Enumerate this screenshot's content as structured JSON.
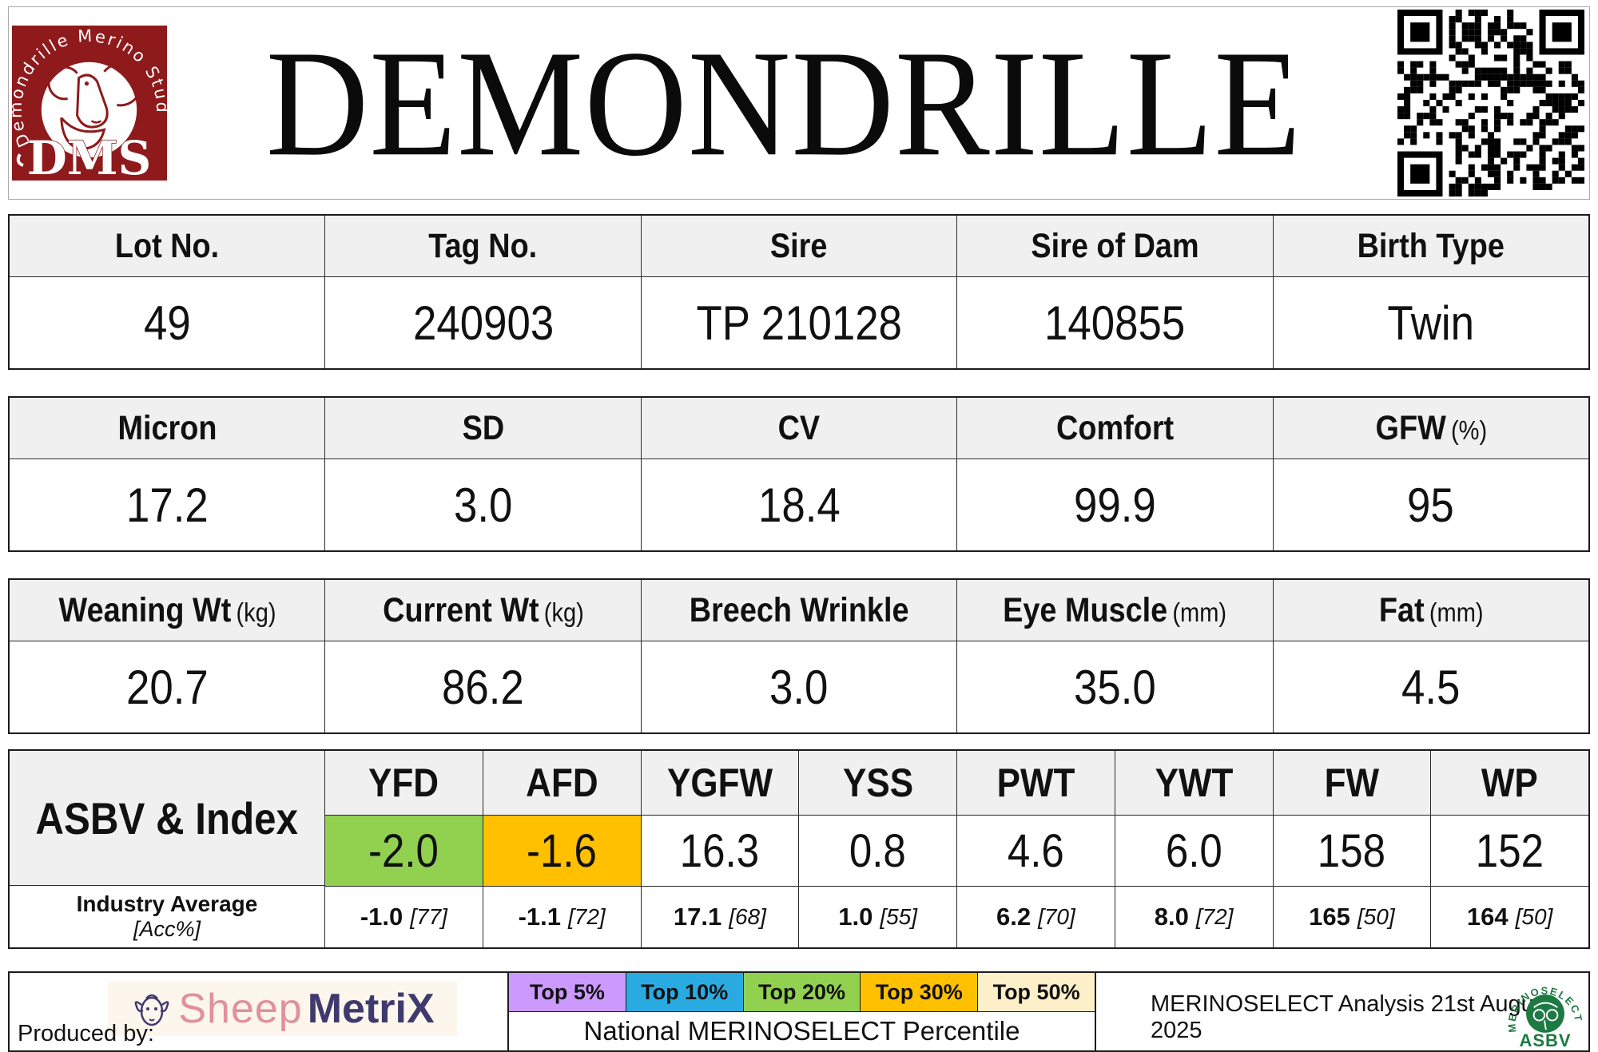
{
  "header": {
    "title": "DEMONDRILLE",
    "logo": {
      "arc_text": "Demondrille Merino Stud",
      "initials": "DMS"
    }
  },
  "tables": {
    "identity": {
      "columns": [
        {
          "label": "Lot No.",
          "unit": "",
          "value": "49"
        },
        {
          "label": "Tag No.",
          "unit": "",
          "value": "240903"
        },
        {
          "label": "Sire",
          "unit": "",
          "value": "TP 210128"
        },
        {
          "label": "Sire of Dam",
          "unit": "",
          "value": "140855"
        },
        {
          "label": "Birth Type",
          "unit": "",
          "value": "Twin"
        }
      ]
    },
    "wool": {
      "columns": [
        {
          "label": "Micron",
          "unit": "",
          "value": "17.2"
        },
        {
          "label": "SD",
          "unit": "",
          "value": "3.0"
        },
        {
          "label": "CV",
          "unit": "",
          "value": "18.4"
        },
        {
          "label": "Comfort",
          "unit": "",
          "value": "99.9"
        },
        {
          "label": "GFW",
          "unit": "(%)",
          "value": "95"
        }
      ]
    },
    "body": {
      "columns": [
        {
          "label": "Weaning Wt",
          "unit": "(kg)",
          "value": "20.7"
        },
        {
          "label": "Current Wt",
          "unit": "(kg)",
          "value": "86.2"
        },
        {
          "label": "Breech Wrinkle",
          "unit": "",
          "value": "3.0"
        },
        {
          "label": "Eye Muscle",
          "unit": "(mm)",
          "value": "35.0"
        },
        {
          "label": "Fat",
          "unit": "(mm)",
          "value": "4.5"
        }
      ]
    }
  },
  "asbv": {
    "row_label": "ASBV & Index",
    "industry_label": "Industry Average",
    "industry_sublabel": "[Acc%]",
    "columns": [
      {
        "label": "YFD",
        "value": "-2.0",
        "cell_style": "background:#92d050",
        "avg": "-1.0",
        "acc": "[77]"
      },
      {
        "label": "AFD",
        "value": "-1.6",
        "cell_style": "background:#ffc000",
        "avg": "-1.1",
        "acc": "[72]"
      },
      {
        "label": "YGFW",
        "value": "16.3",
        "avg": "17.1",
        "acc": "[68]"
      },
      {
        "label": "YSS",
        "value": "0.8",
        "avg": "1.0",
        "acc": "[55]"
      },
      {
        "label": "PWT",
        "value": "4.6",
        "avg": "6.2",
        "acc": "[70]"
      },
      {
        "label": "YWT",
        "value": "6.0",
        "avg": "8.0",
        "acc": "[72]"
      },
      {
        "label": "FW",
        "value": "158",
        "avg": "165",
        "acc": "[50]"
      },
      {
        "label": "WP",
        "value": "152",
        "avg": "164",
        "acc": "[50]"
      }
    ]
  },
  "footer": {
    "produced_by": "Produced by:",
    "sheepmetrix": {
      "word1": "Sheep",
      "word2": "MetriX"
    },
    "legend": [
      {
        "label": "Top 5%",
        "style": "background:#cc99ff"
      },
      {
        "label": "Top 10%",
        "style": "background:#29abe2"
      },
      {
        "label": "Top 20%",
        "style": "background:#92d050"
      },
      {
        "label": "Top 30%",
        "style": "background:#ffc000"
      },
      {
        "label": "Top 50%",
        "style": "background:#fdf0c8"
      }
    ],
    "caption": "National MERINOSELECT Percentile",
    "analysis_note": "MERINOSELECT Analysis 21st August 2025",
    "merinoselect_logo": {
      "arc_text": "MERINOSELECT",
      "sub": "ASBV"
    }
  },
  "colors": {
    "header_fill": "#f0f0f0",
    "highlight_green": "#92d050",
    "highlight_amber": "#ffc000",
    "legend_purple": "#cc99ff",
    "legend_blue": "#29abe2",
    "legend_green": "#92d050",
    "legend_amber": "#ffc000",
    "legend_cream": "#fdf0c8",
    "stud_logo_red": "#8e1a1c",
    "merinoselect_green": "#1d7a43",
    "sheepmetrix_pink": "#e0909f",
    "sheepmetrix_navy": "#3f3a6e"
  }
}
